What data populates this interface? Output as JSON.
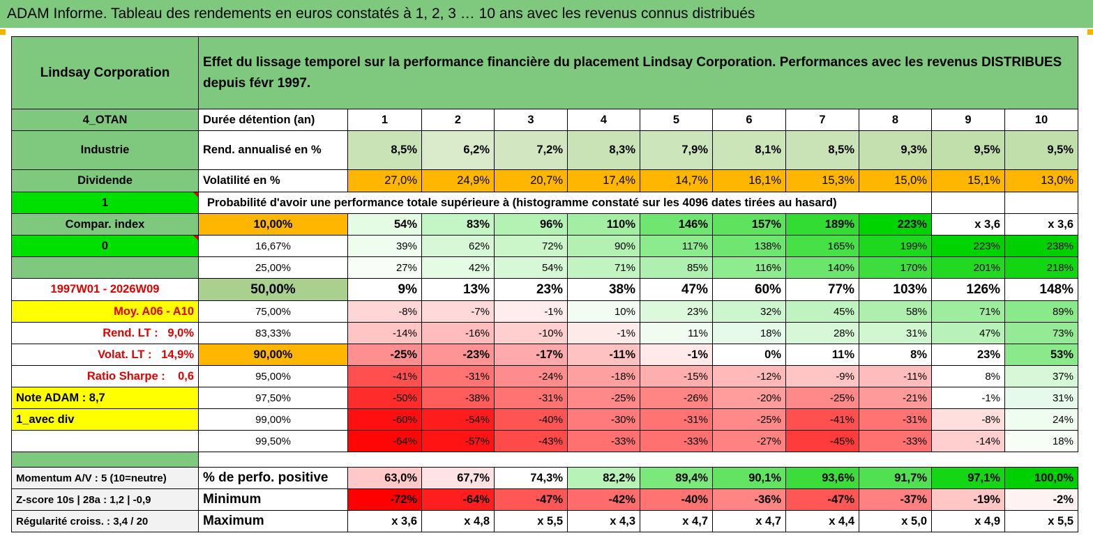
{
  "title": "ADAM Informe. Tableau des rendements en euros constatés à 1, 2, 3 … 10 ans avec les revenus connus distribués",
  "company": "Lindsay Corporation",
  "description": "Effet du lissage temporel sur la performance financière du placement Lindsay Corporation. Performances avec les revenus DISTRIBUES depuis févr 1997.",
  "left_labels": {
    "code": "4_OTAN",
    "sector": "Industrie",
    "type": "Dividende",
    "one": "1",
    "compar": "Compar. index",
    "zero": "0",
    "blank": "",
    "period": "1997W01 - 2026W09",
    "moy": "Moy. A06 - A10",
    "rend_lt_label": "Rend. LT :",
    "rend_lt_value": "9,0%",
    "volat_lt_label": "Volat. LT :",
    "volat_lt_value": "14,9%",
    "sharpe_label": "Ratio Sharpe :",
    "sharpe_value": "0,6",
    "note": "Note ADAM : 8,7",
    "avec_div": "1_avec div"
  },
  "header": {
    "duration_label": "Durée détention (an)",
    "years": [
      "1",
      "2",
      "3",
      "4",
      "5",
      "6",
      "7",
      "8",
      "9",
      "10"
    ]
  },
  "rend": {
    "label": "Rend. annualisé en %",
    "values": [
      "8,5%",
      "6,2%",
      "7,2%",
      "8,3%",
      "7,9%",
      "8,1%",
      "8,5%",
      "9,3%",
      "9,5%",
      "9,5%"
    ]
  },
  "vol": {
    "label": "Volatilité en %",
    "values": [
      "27,0%",
      "24,9%",
      "20,7%",
      "17,4%",
      "14,7%",
      "16,1%",
      "15,3%",
      "15,0%",
      "15,1%",
      "13,0%"
    ]
  },
  "prob_title": "Probabilité d'avoir une performance totale supérieure à (histogramme constaté sur les 4096 dates tirées au hasard)",
  "prob_rows": [
    {
      "p": "10,00%",
      "values": [
        "54%",
        "83%",
        "96%",
        "110%",
        "146%",
        "157%",
        "189%",
        "223%",
        "x 3,6",
        "x 3,6"
      ]
    },
    {
      "p": "16,67%",
      "values": [
        "39%",
        "62%",
        "72%",
        "90%",
        "117%",
        "138%",
        "165%",
        "199%",
        "223%",
        "238%"
      ]
    },
    {
      "p": "25,00%",
      "values": [
        "27%",
        "42%",
        "54%",
        "71%",
        "85%",
        "116%",
        "140%",
        "170%",
        "201%",
        "218%"
      ]
    },
    {
      "p": "50,00%",
      "values": [
        "9%",
        "13%",
        "23%",
        "38%",
        "47%",
        "60%",
        "77%",
        "103%",
        "126%",
        "148%"
      ]
    },
    {
      "p": "75,00%",
      "values": [
        "-8%",
        "-7%",
        "-1%",
        "10%",
        "23%",
        "32%",
        "45%",
        "58%",
        "71%",
        "89%"
      ]
    },
    {
      "p": "83,33%",
      "values": [
        "-14%",
        "-16%",
        "-10%",
        "-1%",
        "11%",
        "18%",
        "28%",
        "31%",
        "47%",
        "73%"
      ]
    },
    {
      "p": "90,00%",
      "values": [
        "-25%",
        "-23%",
        "-17%",
        "-11%",
        "-1%",
        "0%",
        "11%",
        "8%",
        "23%",
        "53%"
      ]
    },
    {
      "p": "95,00%",
      "values": [
        "-41%",
        "-31%",
        "-24%",
        "-18%",
        "-15%",
        "-12%",
        "-9%",
        "-11%",
        "8%",
        "37%"
      ]
    },
    {
      "p": "97,50%",
      "values": [
        "-50%",
        "-38%",
        "-31%",
        "-25%",
        "-26%",
        "-20%",
        "-25%",
        "-21%",
        "-1%",
        "31%"
      ]
    },
    {
      "p": "99,00%",
      "values": [
        "-60%",
        "-54%",
        "-40%",
        "-30%",
        "-31%",
        "-25%",
        "-41%",
        "-31%",
        "-8%",
        "24%"
      ]
    },
    {
      "p": "99,50%",
      "values": [
        "-64%",
        "-57%",
        "-43%",
        "-33%",
        "-33%",
        "-27%",
        "-45%",
        "-33%",
        "-14%",
        "18%"
      ]
    }
  ],
  "bottom_rows": [
    {
      "left": "Momentum A/V : 5 (10=neutre)",
      "label": "% de perfo. positive",
      "values": [
        "63,0%",
        "67,7%",
        "74,3%",
        "82,2%",
        "89,4%",
        "90,1%",
        "93,6%",
        "91,7%",
        "97,1%",
        "100,0%"
      ]
    },
    {
      "left": "Z-score 10s | 28a : 1,2 | -0,9",
      "label": "Minimum",
      "values": [
        "-72%",
        "-64%",
        "-47%",
        "-42%",
        "-40%",
        "-36%",
        "-47%",
        "-37%",
        "-19%",
        "-2%"
      ]
    },
    {
      "left": "Régularité croiss. : 3,4 / 20",
      "label": "Maximum",
      "values": [
        "x 3,6",
        "x 4,8",
        "x 5,5",
        "x 4,3",
        "x 4,7",
        "x 4,7",
        "x 4,4",
        "x 5,0",
        "x 4,9",
        "x 5,5"
      ]
    }
  ],
  "colors": {
    "header_green": "#7fc97f",
    "bright_green": "#00e000",
    "yellow": "#ffff00",
    "orange": "#ffb600",
    "light_green": "#a9d08e",
    "red_text": "#e00000"
  },
  "cell_colors": {
    "rend": [
      "#c9e3b6",
      "#d9ebcb",
      "#d2e7c1",
      "#c9e3b6",
      "#cde5bb",
      "#cbe4b8",
      "#c9e3b6",
      "#c3e0ae",
      "#c1dfab",
      "#c1dfab"
    ],
    "prob": [
      [
        "#e4fbe4",
        "#c4f5c4",
        "#b4f2b4",
        "#a2eea2",
        "#6fe66f",
        "#5fe35f",
        "#33dc33",
        "#00d400",
        "#ffffff",
        "#ffffff"
      ],
      [
        "#effdef",
        "#d6f8d6",
        "#caf6ca",
        "#b2f1b2",
        "#8ceb8c",
        "#6fe66f",
        "#47e047",
        "#1ed81e",
        "#00d400",
        "#00d000"
      ],
      [
        "#f6fef6",
        "#e4fbe4",
        "#d6f8d6",
        "#c2f4c2",
        "#afefaf",
        "#8eeb8e",
        "#6ce56c",
        "#3edd3e",
        "#21d921",
        "#12d612"
      ],
      [
        "#c6dfb4",
        "#ffffff",
        "#ffffff",
        "#ffffff",
        "#ffffff",
        "#ffffff",
        "#ffffff",
        "#ffffff",
        "#ffffff",
        "#ffffff"
      ],
      [
        "#ffd6d6",
        "#ffd9d9",
        "#ffecec",
        "#f2fcf2",
        "#dcf9dc",
        "#cef6ce",
        "#bff3bf",
        "#aeefae",
        "#9eec9e",
        "#8aea8a"
      ],
      [
        "#ffc4c4",
        "#ffbcbc",
        "#ffcfcf",
        "#ffeaea",
        "#f1fcf1",
        "#e6faea",
        "#d6f8d6",
        "#d1f7d1",
        "#b9f2b9",
        "#95eb95"
      ],
      [
        "#ff8e8e",
        "#ff9494",
        "#ffaaaa",
        "#ffc2c2",
        "#ffe9e9",
        "#ffffff",
        "#ffffff",
        "#ffffff",
        "#ffffff",
        "#8aea8a"
      ],
      [
        "#ff5050",
        "#ff7373",
        "#ff8c8c",
        "#ffa0a0",
        "#ffaeae",
        "#ffb9b9",
        "#ffc4c4",
        "#ffbcbc",
        "#ffffff",
        "#d6f8d6"
      ],
      [
        "#ff2c2c",
        "#ff5c5c",
        "#ff7373",
        "#ff8888",
        "#ff8484",
        "#ff9c9c",
        "#ff8888",
        "#ff9a9a",
        "#ffffff",
        "#e6faea"
      ],
      [
        "#ff0f0f",
        "#ff1c1c",
        "#ff5454",
        "#ff7b7b",
        "#ff7373",
        "#ff8888",
        "#ff5050",
        "#ff7373",
        "#ffdede",
        "#effdef"
      ],
      [
        "#ff0606",
        "#ff1313",
        "#ff4a4a",
        "#ff7070",
        "#ff7070",
        "#ff8282",
        "#ff3c3c",
        "#ff7070",
        "#ffcfcf",
        "#f6fef6"
      ]
    ],
    "pos": [
      "#ffc9c9",
      "#ffe3e3",
      "#ffffff",
      "#b7f2b7",
      "#7ae87a",
      "#62e462",
      "#3bdd3b",
      "#51e051",
      "#14d614",
      "#00d000"
    ],
    "min": [
      "#ff0000",
      "#ff1f1f",
      "#ff5656",
      "#ff6c6c",
      "#ff7373",
      "#ff8484",
      "#ff5656",
      "#ff8080",
      "#ffc6c6",
      "#fff2f2"
    ]
  }
}
